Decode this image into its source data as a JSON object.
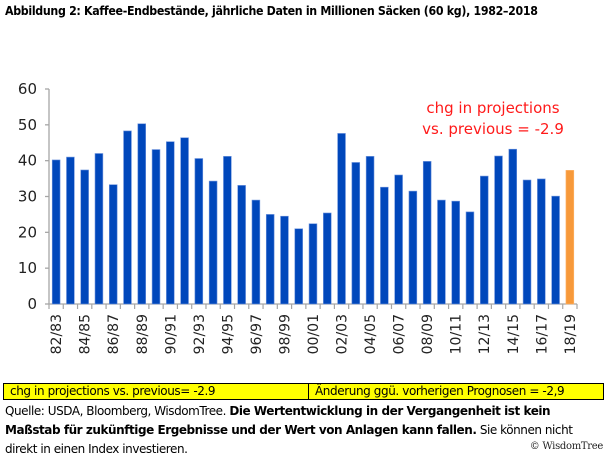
{
  "title": "Abbildung 2: Kaffee-Endbestände, jährliche Daten in Millionen Säcken (60 kg), 1982–2018",
  "chart_data": {
    "type": "bar",
    "title": "Abbildung 2: Kaffee-Endbestände, jährliche Daten in Millionen Säcken (60 kg), 1982–2018",
    "xlabel": "",
    "ylabel": "",
    "ylim": [
      0,
      60
    ],
    "yticks": [
      0,
      10,
      20,
      30,
      40,
      50,
      60
    ],
    "grid": false,
    "legend": "none",
    "categories": [
      "82/83",
      "83/84",
      "84/85",
      "85/86",
      "86/87",
      "87/88",
      "88/89",
      "89/90",
      "90/91",
      "91/92",
      "92/93",
      "93/94",
      "94/95",
      "95/96",
      "96/97",
      "97/98",
      "98/99",
      "99/00",
      "00/01",
      "01/02",
      "02/03",
      "03/04",
      "04/05",
      "05/06",
      "06/07",
      "07/08",
      "08/09",
      "09/10",
      "10/11",
      "11/12",
      "12/13",
      "13/14",
      "14/15",
      "15/16",
      "16/17",
      "17/18",
      "18/19"
    ],
    "tick_labels": [
      "82/83",
      "84/85",
      "86/87",
      "88/89",
      "90/91",
      "92/93",
      "94/95",
      "96/97",
      "98/99",
      "00/01",
      "02/03",
      "04/05",
      "06/07",
      "08/09",
      "10/11",
      "12/13",
      "14/15",
      "16/17",
      "18/19"
    ],
    "values": [
      40.2,
      41.0,
      37.4,
      42.0,
      33.3,
      48.3,
      50.3,
      43.1,
      45.3,
      46.4,
      40.6,
      34.3,
      41.2,
      33.1,
      29.0,
      25.0,
      24.5,
      21.0,
      22.4,
      25.4,
      47.6,
      39.5,
      41.2,
      32.6,
      36.0,
      31.5,
      39.8,
      29.0,
      28.7,
      25.7,
      35.7,
      41.3,
      43.2,
      34.6,
      34.9,
      30.1,
      37.3
    ],
    "colors": {
      "historical": "#0047bb",
      "projection": "#f7993a"
    },
    "projection_category": "18/19",
    "annotation": {
      "lines": [
        "chg in projections",
        "vs. previous = -2.9"
      ],
      "color": "#ff1a1a"
    }
  },
  "note_box": {
    "left": "chg in projections vs. previous= -2.9",
    "right": "Änderung ggü. vorherigen Prognosen = -2,9",
    "background": "#ffff00"
  },
  "source": {
    "plain1": "Quelle: USDA, Bloomberg, WisdomTree. ",
    "bold": "Die Wertentwicklung in der Vergangenheit ist kein Maßstab für zukünftige Ergebnisse und der Wert von Anlagen kann fallen.",
    "plain2": " Sie können nicht direkt in einen Index investieren."
  },
  "copyright": "© WisdomTree"
}
